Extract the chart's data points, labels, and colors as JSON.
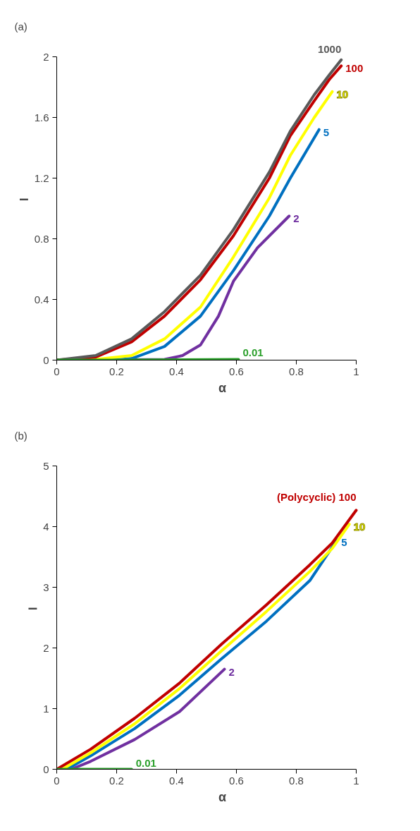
{
  "chart_data": [
    {
      "type": "line",
      "title": "(a)",
      "xlabel": "α",
      "ylabel": "–",
      "xlim": [
        0,
        1
      ],
      "ylim": [
        0,
        2
      ],
      "xticks": [
        0,
        0.2,
        0.4,
        0.6,
        0.8,
        1
      ],
      "yticks": [
        0,
        0.4,
        0.8,
        1.2,
        1.6,
        2
      ],
      "series": [
        {
          "name": "2",
          "color": "#7030a0",
          "x": [
            0,
            0.25,
            0.36,
            0.42,
            0.48,
            0.54,
            0.59,
            0.67,
            0.776
          ],
          "values": [
            0,
            0.002,
            0.005,
            0.03,
            0.1,
            0.29,
            0.52,
            0.74,
            0.95
          ]
        },
        {
          "name": "5",
          "color": "#0070c0",
          "x": [
            0,
            0.2,
            0.25,
            0.36,
            0.48,
            0.59,
            0.71,
            0.78,
            0.876
          ],
          "values": [
            0,
            0.002,
            0.01,
            0.09,
            0.29,
            0.59,
            0.95,
            1.2,
            1.52
          ]
        },
        {
          "name": "10",
          "color": "#ffff00",
          "x": [
            0,
            0.13,
            0.25,
            0.36,
            0.48,
            0.59,
            0.71,
            0.78,
            0.86,
            0.92
          ],
          "values": [
            0,
            0.005,
            0.03,
            0.14,
            0.35,
            0.68,
            1.07,
            1.35,
            1.6,
            1.77
          ]
        },
        {
          "name": "100",
          "color": "#c00000",
          "x": [
            0,
            0.13,
            0.25,
            0.36,
            0.48,
            0.59,
            0.71,
            0.78,
            0.86,
            0.91,
            0.95
          ],
          "values": [
            0,
            0.02,
            0.12,
            0.29,
            0.53,
            0.82,
            1.2,
            1.48,
            1.71,
            1.85,
            1.94
          ]
        },
        {
          "name": "1000",
          "color": "#595959",
          "x": [
            0,
            0.13,
            0.25,
            0.36,
            0.48,
            0.59,
            0.71,
            0.78,
            0.86,
            0.91,
            0.95
          ],
          "values": [
            0,
            0.03,
            0.14,
            0.32,
            0.56,
            0.86,
            1.24,
            1.51,
            1.75,
            1.88,
            1.98
          ]
        },
        {
          "name": "0.01",
          "color": "#2ca02c",
          "x": [
            0,
            0.2,
            0.4,
            0.607
          ],
          "values": [
            0,
            0,
            0.002,
            0.005
          ]
        }
      ]
    },
    {
      "type": "line",
      "title": "(b)",
      "xlabel": "α",
      "ylabel": "–",
      "xlim": [
        0,
        1
      ],
      "ylim": [
        0,
        5
      ],
      "xticks": [
        0,
        0.2,
        0.4,
        0.6,
        0.8,
        1
      ],
      "yticks": [
        0,
        1,
        2,
        3,
        4,
        5
      ],
      "series": [
        {
          "name": "2",
          "color": "#7030a0",
          "x": [
            0.048,
            0.113,
            0.26,
            0.41,
            0.56
          ],
          "values": [
            0,
            0.13,
            0.49,
            0.95,
            1.65
          ]
        },
        {
          "name": "5",
          "color": "#0070c0",
          "x": [
            0.033,
            0.113,
            0.26,
            0.41,
            0.55,
            0.7,
            0.845,
            0.936
          ],
          "values": [
            0,
            0.22,
            0.67,
            1.22,
            1.82,
            2.44,
            3.11,
            3.78
          ]
        },
        {
          "name": "10",
          "color": "#ffff00",
          "x": [
            0.018,
            0.113,
            0.26,
            0.41,
            0.55,
            0.7,
            0.845,
            0.92,
            0.977
          ],
          "values": [
            0,
            0.27,
            0.75,
            1.33,
            1.95,
            2.6,
            3.26,
            3.64,
            4.04
          ]
        },
        {
          "name": "(Polycyclic) 100",
          "color": "#c00000",
          "x": [
            0,
            0.113,
            0.26,
            0.41,
            0.55,
            0.7,
            0.845,
            0.92,
            1.0
          ],
          "values": [
            0,
            0.33,
            0.84,
            1.42,
            2.06,
            2.71,
            3.37,
            3.73,
            4.27
          ]
        },
        {
          "name": "0.01",
          "color": "#2ca02c",
          "x": [
            0,
            0.1,
            0.25
          ],
          "values": [
            0,
            0,
            0
          ]
        }
      ]
    }
  ]
}
